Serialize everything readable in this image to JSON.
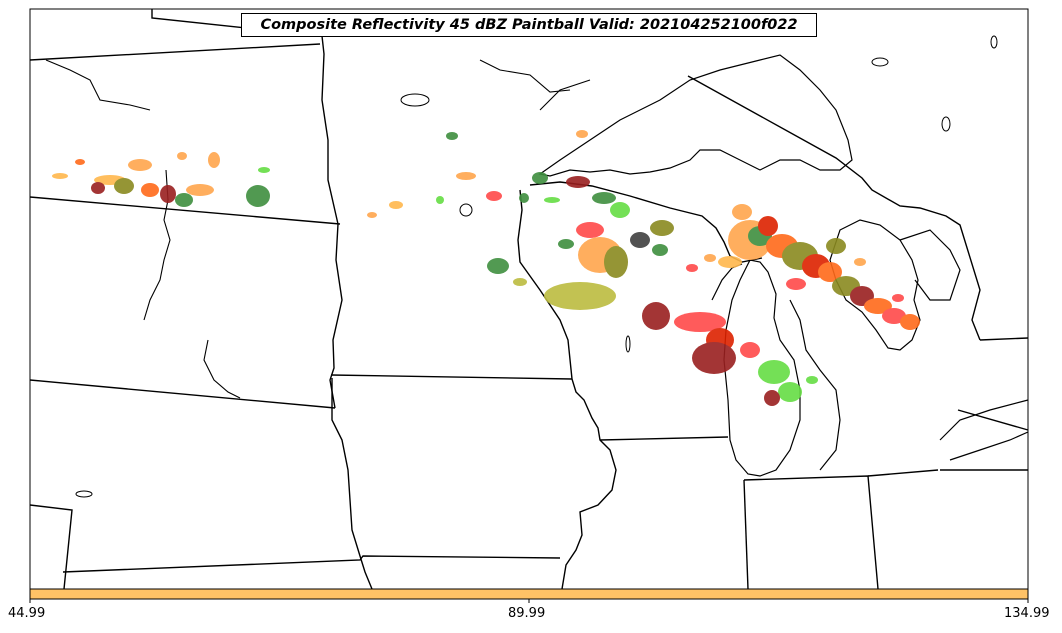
{
  "title": "Composite Reflectivity 45 dBZ Paintball Valid: 202104252100f022",
  "colorbar": {
    "color": "#ffc266",
    "ticks": [
      "44.99",
      "89.99",
      "134.99"
    ]
  },
  "paintball_colors": [
    "#ff6a1a",
    "#ffa64d",
    "#ffb84d",
    "#3f8f3f",
    "#66dd44",
    "#ff4a4a",
    "#9a2020",
    "#8a8a20",
    "#bcbc40",
    "#404040",
    "#dd2200"
  ]
}
